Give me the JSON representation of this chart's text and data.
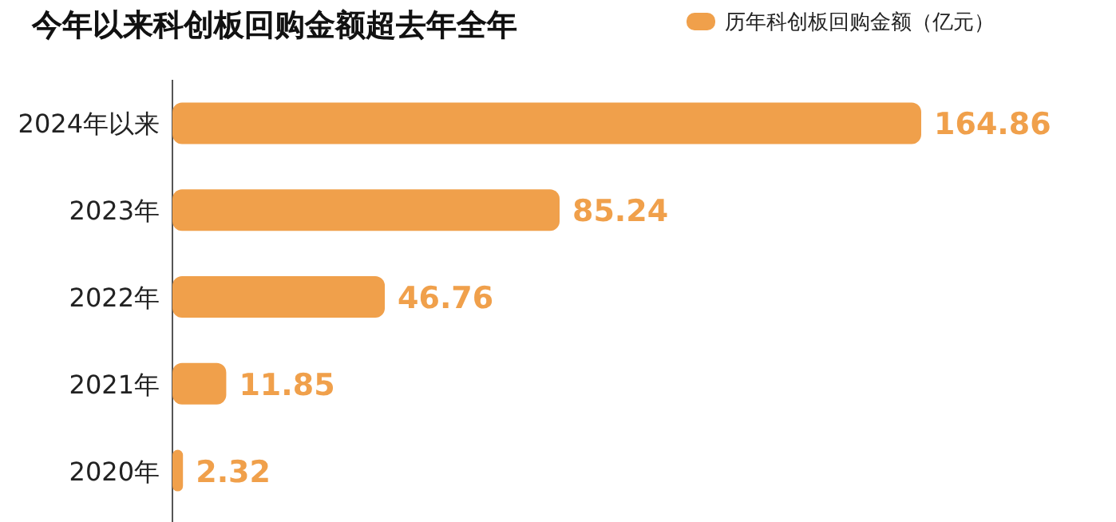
{
  "chart_data": {
    "type": "bar",
    "orientation": "horizontal",
    "title": "今年以来科创板回购金额超去年全年",
    "categories": [
      "2024年以来",
      "2023年",
      "2022年",
      "2021年",
      "2020年"
    ],
    "series": [
      {
        "name": "历年科创板回购金额（亿元）",
        "color": "#f0a04b",
        "values": [
          164.86,
          85.24,
          46.76,
          11.85,
          2.32
        ]
      }
    ],
    "data_labels": true,
    "legend": "top right"
  }
}
